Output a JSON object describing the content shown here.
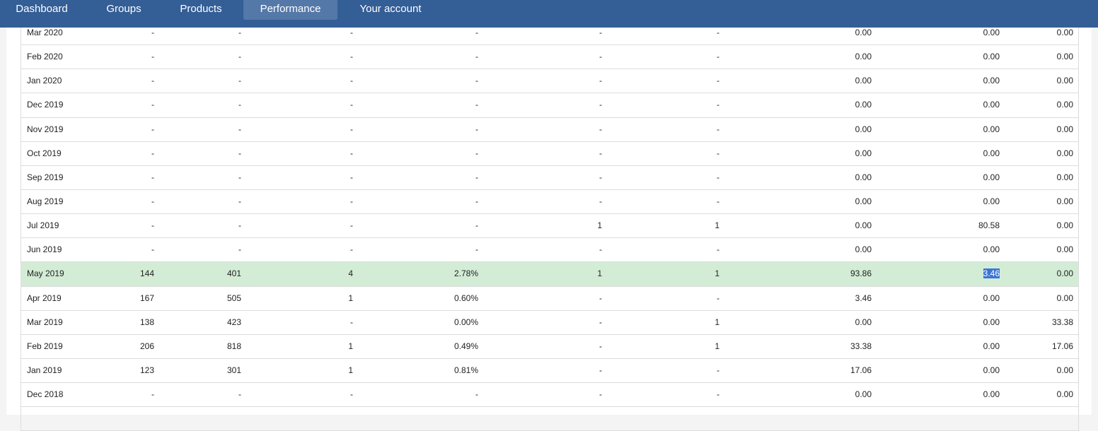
{
  "nav": {
    "items": [
      {
        "label": "Dashboard"
      },
      {
        "label": "Groups"
      },
      {
        "label": "Products"
      },
      {
        "label": "Performance"
      },
      {
        "label": "Your account"
      }
    ],
    "active": "Performance"
  },
  "colors": {
    "nav_bg": "#345e96",
    "nav_active": "#5478a8",
    "highlight_row": "#d3ecd6",
    "selection": "#3b76d6"
  },
  "table": {
    "rows": [
      {
        "month": "Mar 2020",
        "c1": "-",
        "c2": "-",
        "c3": "-",
        "c4": "-",
        "c5": "-",
        "c6": "-",
        "c7": "0.00",
        "c8": "0.00",
        "c9": "0.00"
      },
      {
        "month": "Feb 2020",
        "c1": "-",
        "c2": "-",
        "c3": "-",
        "c4": "-",
        "c5": "-",
        "c6": "-",
        "c7": "0.00",
        "c8": "0.00",
        "c9": "0.00"
      },
      {
        "month": "Jan 2020",
        "c1": "-",
        "c2": "-",
        "c3": "-",
        "c4": "-",
        "c5": "-",
        "c6": "-",
        "c7": "0.00",
        "c8": "0.00",
        "c9": "0.00"
      },
      {
        "month": "Dec 2019",
        "c1": "-",
        "c2": "-",
        "c3": "-",
        "c4": "-",
        "c5": "-",
        "c6": "-",
        "c7": "0.00",
        "c8": "0.00",
        "c9": "0.00"
      },
      {
        "month": "Nov 2019",
        "c1": "-",
        "c2": "-",
        "c3": "-",
        "c4": "-",
        "c5": "-",
        "c6": "-",
        "c7": "0.00",
        "c8": "0.00",
        "c9": "0.00"
      },
      {
        "month": "Oct 2019",
        "c1": "-",
        "c2": "-",
        "c3": "-",
        "c4": "-",
        "c5": "-",
        "c6": "-",
        "c7": "0.00",
        "c8": "0.00",
        "c9": "0.00"
      },
      {
        "month": "Sep 2019",
        "c1": "-",
        "c2": "-",
        "c3": "-",
        "c4": "-",
        "c5": "-",
        "c6": "-",
        "c7": "0.00",
        "c8": "0.00",
        "c9": "0.00"
      },
      {
        "month": "Aug 2019",
        "c1": "-",
        "c2": "-",
        "c3": "-",
        "c4": "-",
        "c5": "-",
        "c6": "-",
        "c7": "0.00",
        "c8": "0.00",
        "c9": "0.00"
      },
      {
        "month": "Jul 2019",
        "c1": "-",
        "c2": "-",
        "c3": "-",
        "c4": "-",
        "c5": "1",
        "c6": "1",
        "c7": "0.00",
        "c8": "80.58",
        "c9": "0.00"
      },
      {
        "month": "Jun 2019",
        "c1": "-",
        "c2": "-",
        "c3": "-",
        "c4": "-",
        "c5": "-",
        "c6": "-",
        "c7": "0.00",
        "c8": "0.00",
        "c9": "0.00"
      },
      {
        "month": "May 2019",
        "c1": "144",
        "c2": "401",
        "c3": "4",
        "c4": "2.78%",
        "c5": "1",
        "c6": "1",
        "c7": "93.86",
        "c8": "3.46",
        "c9": "0.00",
        "highlight": true,
        "selected_col": "c8"
      },
      {
        "month": "Apr 2019",
        "c1": "167",
        "c2": "505",
        "c3": "1",
        "c4": "0.60%",
        "c5": "-",
        "c6": "-",
        "c7": "3.46",
        "c8": "0.00",
        "c9": "0.00"
      },
      {
        "month": "Mar 2019",
        "c1": "138",
        "c2": "423",
        "c3": "-",
        "c4": "0.00%",
        "c5": "-",
        "c6": "1",
        "c7": "0.00",
        "c8": "0.00",
        "c9": "33.38"
      },
      {
        "month": "Feb 2019",
        "c1": "206",
        "c2": "818",
        "c3": "1",
        "c4": "0.49%",
        "c5": "-",
        "c6": "1",
        "c7": "33.38",
        "c8": "0.00",
        "c9": "17.06"
      },
      {
        "month": "Jan 2019",
        "c1": "123",
        "c2": "301",
        "c3": "1",
        "c4": "0.81%",
        "c5": "-",
        "c6": "-",
        "c7": "17.06",
        "c8": "0.00",
        "c9": "0.00"
      },
      {
        "month": "Dec 2018",
        "c1": "-",
        "c2": "-",
        "c3": "-",
        "c4": "-",
        "c5": "-",
        "c6": "-",
        "c7": "0.00",
        "c8": "0.00",
        "c9": "0.00"
      },
      {
        "month": "",
        "c1": "",
        "c2": "",
        "c3": "",
        "c4": "",
        "c5": "",
        "c6": "",
        "c7": "",
        "c8": "",
        "c9": ""
      }
    ]
  }
}
